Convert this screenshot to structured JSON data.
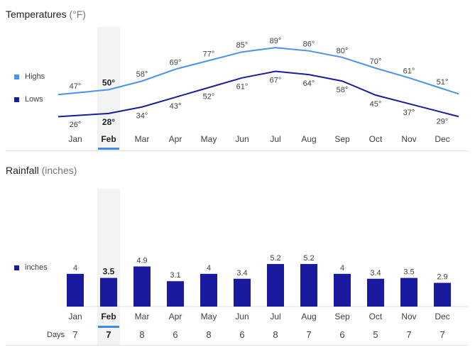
{
  "colors": {
    "highs": "#4d90ee",
    "lows": "#1a1d9a",
    "rain": "#1a1a9e",
    "selected_bg": "#f1f3f4",
    "accent": "#4285f4"
  },
  "selected_index": 1,
  "temperature": {
    "title": "Temperatures",
    "unit": "(°F)",
    "legend": {
      "highs": "Highs",
      "lows": "Lows"
    }
  },
  "rainfall": {
    "title": "Rainfall",
    "unit": "(inches)",
    "legend": {
      "inches": "inches"
    },
    "days_label": "Days"
  },
  "chart_data": [
    {
      "type": "line",
      "title": "Temperatures (°F)",
      "categories": [
        "Jan",
        "Feb",
        "Mar",
        "Apr",
        "May",
        "Jun",
        "Jul",
        "Aug",
        "Sep",
        "Oct",
        "Nov",
        "Dec"
      ],
      "series": [
        {
          "name": "Highs",
          "values": [
            47,
            50,
            58,
            69,
            77,
            85,
            89,
            86,
            80,
            70,
            61,
            51
          ],
          "labels": [
            "47°",
            "50°",
            "58°",
            "69°",
            "77°",
            "85°",
            "89°",
            "86°",
            "80°",
            "70°",
            "61°",
            "51°"
          ]
        },
        {
          "name": "Lows",
          "values": [
            26,
            28,
            34,
            43,
            52,
            61,
            67,
            64,
            58,
            45,
            37,
            29
          ],
          "labels": [
            "26°",
            "28°",
            "34°",
            "43°",
            "52°",
            "61°",
            "67°",
            "64°",
            "58°",
            "45°",
            "37°",
            "29°"
          ]
        }
      ],
      "ylim": [
        20,
        95
      ],
      "legend_position": "left"
    },
    {
      "type": "bar",
      "title": "Rainfall (inches)",
      "categories": [
        "Jan",
        "Feb",
        "Mar",
        "Apr",
        "May",
        "Jun",
        "Jul",
        "Aug",
        "Sep",
        "Oct",
        "Nov",
        "Dec"
      ],
      "series": [
        {
          "name": "inches",
          "values": [
            4,
            3.5,
            4.9,
            3.1,
            4,
            3.4,
            5.2,
            5.2,
            4,
            3.4,
            3.5,
            2.9
          ],
          "labels": [
            "4",
            "3.5",
            "4.9",
            "3.1",
            "4",
            "3.4",
            "5.2",
            "5.2",
            "4",
            "3.4",
            "3.5",
            "2.9"
          ]
        }
      ],
      "days": [
        "7",
        "7",
        "8",
        "6",
        "8",
        "6",
        "8",
        "7",
        "6",
        "5",
        "7",
        "7"
      ],
      "ylim": [
        0,
        5.2
      ],
      "legend_position": "left"
    }
  ]
}
